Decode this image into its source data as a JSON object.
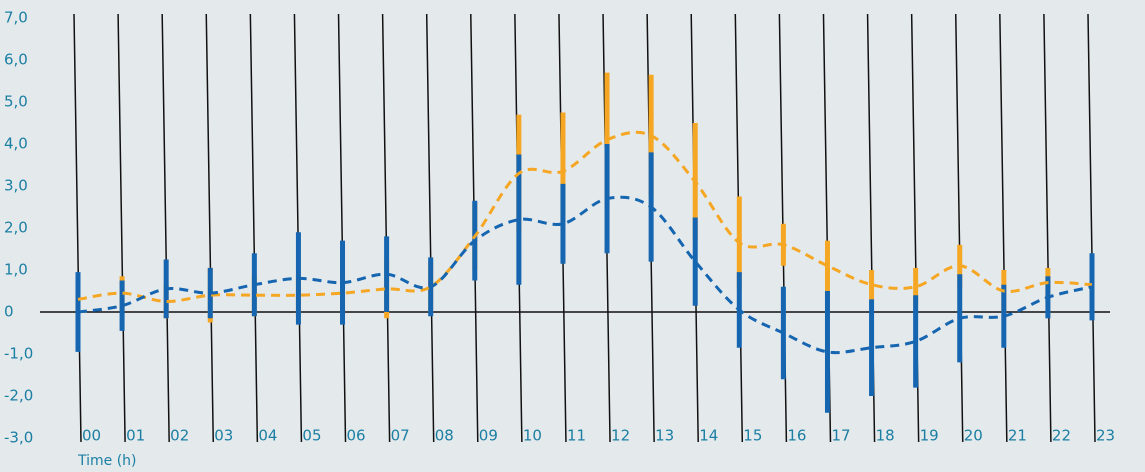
{
  "chart_data": {
    "type": "line",
    "x_label": "Time (h)",
    "categories": [
      "00",
      "01",
      "02",
      "03",
      "04",
      "05",
      "06",
      "07",
      "08",
      "09",
      "10",
      "11",
      "12",
      "13",
      "14",
      "15",
      "16",
      "17",
      "18",
      "19",
      "20",
      "21",
      "22",
      "23"
    ],
    "series": [
      {
        "color": "#f5a623",
        "dashed": true,
        "values": [
          0.3,
          0.45,
          0.25,
          0.4,
          0.4,
          0.4,
          0.45,
          0.55,
          0.6,
          1.8,
          3.3,
          3.35,
          4.1,
          4.2,
          3.1,
          1.65,
          1.6,
          1.1,
          0.65,
          0.6,
          1.1,
          0.5,
          0.7,
          0.65
        ],
        "errors": [
          0.5,
          0.4,
          0.4,
          0.65,
          0.5,
          0.5,
          0.5,
          0.7,
          0.6,
          0.8,
          1.4,
          1.4,
          1.6,
          1.45,
          1.4,
          1.1,
          0.5,
          0.6,
          0.35,
          0.45,
          0.5,
          0.5,
          0.35,
          0.3
        ]
      },
      {
        "color": "#1565b0",
        "dashed": true,
        "values": [
          0.0,
          0.15,
          0.55,
          0.45,
          0.65,
          0.8,
          0.7,
          0.9,
          0.6,
          1.7,
          2.2,
          2.1,
          2.7,
          2.5,
          1.2,
          0.05,
          -0.5,
          -0.95,
          -0.85,
          -0.7,
          -0.15,
          -0.1,
          0.35,
          0.6
        ],
        "errors": [
          0.95,
          0.6,
          0.7,
          0.6,
          0.75,
          1.1,
          1.0,
          0.9,
          0.7,
          0.95,
          1.55,
          0.95,
          1.3,
          1.3,
          1.05,
          0.9,
          1.1,
          1.45,
          1.15,
          1.1,
          1.05,
          0.75,
          0.5,
          0.8
        ]
      }
    ],
    "ylim": [
      -3,
      7
    ],
    "yticks": [
      {
        "value": -3,
        "label": "-3,0"
      },
      {
        "value": -2,
        "label": "-2,0"
      },
      {
        "value": -1,
        "label": "-1,0"
      },
      0,
      {
        "value": 1,
        "label": "1,0"
      },
      {
        "value": 2,
        "label": "2,0"
      },
      {
        "value": 3,
        "label": "3,0"
      },
      {
        "value": 4,
        "label": "4,0"
      },
      {
        "value": 5,
        "label": "5,0"
      },
      {
        "value": 6,
        "label": "6,0"
      },
      {
        "value": 7,
        "label": "7,0"
      }
    ]
  }
}
